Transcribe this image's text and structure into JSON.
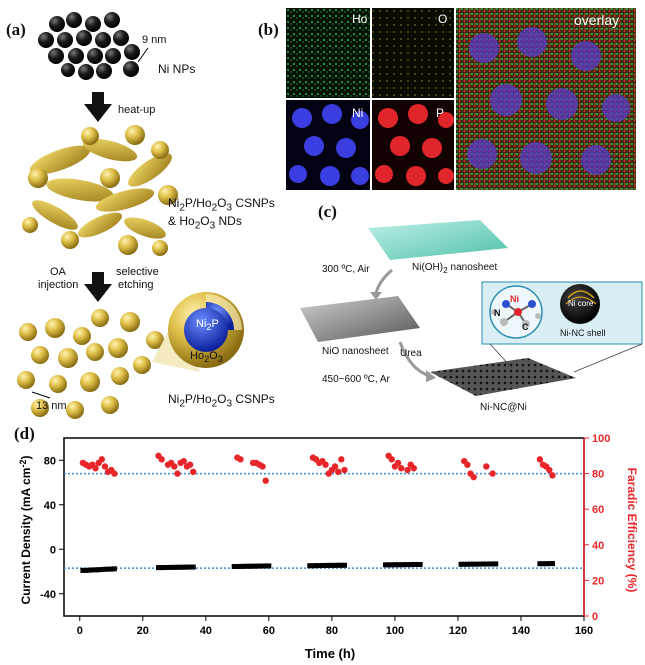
{
  "panels": {
    "a": {
      "label": "(a)",
      "size_label": "9 nm",
      "np_label": "Ni NPs",
      "step1": "heat-up",
      "product1_line1": "Ni",
      "product1_sub1": "2",
      "product1_rest1": "P/Ho",
      "product1_sub2": "2",
      "product1_mid": "O",
      "product1_sub3": "3",
      "product1_end": " CSNPs",
      "product1_line2": "& Ho",
      "product1_line2_sub1": "2",
      "product1_line2_mid": "O",
      "product1_line2_sub2": "3",
      "product1_line2_end": " NDs",
      "step2_left_line1": "OA",
      "step2_left_line2": "injection",
      "step2_right_line1": "selective",
      "step2_right_line2": "etching",
      "core_label": "Ni",
      "core_sub": "2",
      "core_end": "P",
      "shell_label": "Ho",
      "shell_sub1": "2",
      "shell_mid": "O",
      "shell_sub2": "3",
      "scale2_label": "13 nm",
      "product2": "Ni",
      "product2_sub1": "2",
      "product2_rest": "P/Ho",
      "product2_sub2": "2",
      "product2_mid": "O",
      "product2_sub3": "3",
      "product2_end": " CSNPs"
    },
    "b": {
      "label": "(b)",
      "maps": [
        "Ho",
        "O",
        "Ni",
        "P"
      ],
      "overlay": "overlay",
      "colors": {
        "Ho": "#2fb34a",
        "O": "#c9c632",
        "Ni": "#3a3de0",
        "P": "#e0262a"
      }
    },
    "c": {
      "label": "(c)",
      "step1": "300 ºC, Air",
      "sheet1_a": "Ni(OH)",
      "sheet1_sub": "2",
      "sheet1_b": " nanosheet",
      "sheet2": "NiO nanosheet",
      "reagent": "Urea",
      "step2": "450~600 ºC, Ar",
      "product": "Ni-NC@Ni",
      "inset_atoms": [
        "N",
        "Ni",
        "C"
      ],
      "core_label": "Ni core",
      "shell_label": "Ni-NC shell"
    },
    "d": {
      "label": "(d)"
    }
  },
  "chart_data": {
    "type": "scatter",
    "xlabel": "Time (h)",
    "ylabel_left": "Current Density (mA cm",
    "ylabel_left_sup": "-2",
    "ylabel_left_end": ")",
    "ylabel_right": "Faradic Efficiency (%)",
    "xlim": [
      -5,
      160
    ],
    "ylim_left": [
      -60,
      100
    ],
    "ylim_right": [
      0,
      100
    ],
    "x_ticks": [
      0,
      20,
      40,
      60,
      80,
      100,
      120,
      140,
      160
    ],
    "y_left_ticks": [
      80,
      40,
      0,
      -40
    ],
    "y_right_ticks": [
      0,
      20,
      40,
      60,
      80,
      100
    ],
    "ref_lines": {
      "current": -17,
      "efficiency": 80
    },
    "colors": {
      "current": "#000000",
      "efficiency": "#e8262a",
      "ref": "#3a8fd8",
      "right_axis": "#e8262a"
    },
    "series": [
      {
        "axis": "left",
        "points": [
          [
            1,
            -19
          ],
          [
            2,
            -19
          ],
          [
            3,
            -18.8
          ],
          [
            4,
            -18.6
          ],
          [
            5,
            -18.5
          ],
          [
            6,
            -18.4
          ],
          [
            7,
            -18.2
          ],
          [
            8,
            -18
          ],
          [
            9,
            -17.9
          ],
          [
            10,
            -17.8
          ],
          [
            11,
            -17.6
          ],
          [
            25,
            -16.5
          ],
          [
            26,
            -16.5
          ],
          [
            27,
            -16.4
          ],
          [
            28,
            -16.4
          ],
          [
            29,
            -16.3
          ],
          [
            30,
            -16.3
          ],
          [
            31,
            -16.2
          ],
          [
            32,
            -16.2
          ],
          [
            33,
            -16.1
          ],
          [
            34,
            -16.1
          ],
          [
            35,
            -16
          ],
          [
            36,
            -16
          ],
          [
            49,
            -15.5
          ],
          [
            50,
            -15.5
          ],
          [
            51,
            -15.4
          ],
          [
            52,
            -15.4
          ],
          [
            53,
            -15.3
          ],
          [
            54,
            -15.3
          ],
          [
            55,
            -15.2
          ],
          [
            56,
            -15.2
          ],
          [
            57,
            -15.1
          ],
          [
            58,
            -15.1
          ],
          [
            59,
            -15
          ],
          [
            60,
            -15
          ],
          [
            73,
            -14.8
          ],
          [
            74,
            -14.8
          ],
          [
            75,
            -14.7
          ],
          [
            76,
            -14.7
          ],
          [
            77,
            -14.6
          ],
          [
            78,
            -14.6
          ],
          [
            79,
            -14.5
          ],
          [
            80,
            -14.5
          ],
          [
            81,
            -14.5
          ],
          [
            82,
            -14.4
          ],
          [
            83,
            -14.4
          ],
          [
            84,
            -14.4
          ],
          [
            97,
            -14
          ],
          [
            98,
            -14
          ],
          [
            99,
            -14
          ],
          [
            100,
            -13.9
          ],
          [
            101,
            -13.9
          ],
          [
            102,
            -13.9
          ],
          [
            103,
            -13.8
          ],
          [
            104,
            -13.8
          ],
          [
            105,
            -13.8
          ],
          [
            106,
            -13.7
          ],
          [
            107,
            -13.7
          ],
          [
            108,
            -13.7
          ],
          [
            121,
            -13.5
          ],
          [
            122,
            -13.5
          ],
          [
            123,
            -13.5
          ],
          [
            124,
            -13.4
          ],
          [
            125,
            -13.4
          ],
          [
            126,
            -13.4
          ],
          [
            127,
            -13.3
          ],
          [
            128,
            -13.3
          ],
          [
            129,
            -13.3
          ],
          [
            130,
            -13.2
          ],
          [
            131,
            -13.2
          ],
          [
            132,
            -13.2
          ],
          [
            146,
            -13
          ],
          [
            147,
            -13
          ],
          [
            148,
            -13
          ],
          [
            149,
            -12.9
          ],
          [
            150,
            -12.9
          ]
        ]
      },
      {
        "axis": "right",
        "points": [
          [
            1,
            86
          ],
          [
            2,
            85
          ],
          [
            3,
            84
          ],
          [
            4,
            85
          ],
          [
            5,
            83
          ],
          [
            6,
            86
          ],
          [
            7,
            88
          ],
          [
            8,
            84
          ],
          [
            9,
            81
          ],
          [
            10,
            82
          ],
          [
            11,
            80
          ],
          [
            25,
            90
          ],
          [
            26,
            88
          ],
          [
            28,
            85
          ],
          [
            29,
            86
          ],
          [
            30,
            84
          ],
          [
            31,
            80
          ],
          [
            32,
            86
          ],
          [
            33,
            87
          ],
          [
            34,
            84
          ],
          [
            35,
            85
          ],
          [
            36,
            81
          ],
          [
            50,
            89
          ],
          [
            51,
            88
          ],
          [
            55,
            86
          ],
          [
            56,
            86
          ],
          [
            57,
            85
          ],
          [
            58,
            84
          ],
          [
            59,
            76
          ],
          [
            74,
            89
          ],
          [
            75,
            88
          ],
          [
            76,
            86
          ],
          [
            77,
            87
          ],
          [
            78,
            85
          ],
          [
            79,
            80
          ],
          [
            80,
            82
          ],
          [
            81,
            84
          ],
          [
            82,
            81
          ],
          [
            83,
            88
          ],
          [
            84,
            82
          ],
          [
            98,
            90
          ],
          [
            99,
            88
          ],
          [
            100,
            84
          ],
          [
            101,
            86
          ],
          [
            102,
            83
          ],
          [
            104,
            82
          ],
          [
            105,
            85
          ],
          [
            106,
            83
          ],
          [
            122,
            87
          ],
          [
            123,
            85
          ],
          [
            124,
            80
          ],
          [
            125,
            78
          ],
          [
            129,
            84
          ],
          [
            131,
            80
          ],
          [
            146,
            88
          ],
          [
            147,
            85
          ],
          [
            148,
            84
          ],
          [
            149,
            82
          ],
          [
            150,
            79
          ]
        ]
      }
    ]
  }
}
